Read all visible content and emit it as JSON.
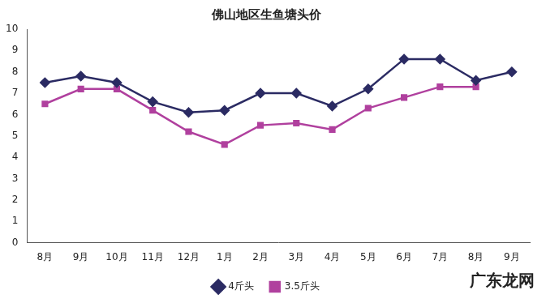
{
  "chart_data": {
    "type": "line",
    "title": "佛山地区生鱼塘头价",
    "categories": [
      "8月",
      "9月",
      "10月",
      "11月",
      "12月",
      "1月",
      "2月",
      "3月",
      "4月",
      "5月",
      "6月",
      "7月",
      "8月",
      "9月"
    ],
    "series": [
      {
        "name": "4斤头",
        "color": "#2b2b63",
        "marker": "diamond",
        "values": [
          7.5,
          7.8,
          7.5,
          6.6,
          6.1,
          6.2,
          7.0,
          7.0,
          6.4,
          7.2,
          8.6,
          8.6,
          7.6,
          8.0
        ]
      },
      {
        "name": "3.5斤头",
        "color": "#b0409e",
        "marker": "square",
        "values": [
          6.5,
          7.2,
          7.2,
          6.2,
          5.2,
          4.6,
          5.5,
          5.6,
          5.3,
          6.3,
          6.8,
          7.3,
          7.3,
          null
        ]
      }
    ],
    "ylim": [
      0,
      10
    ],
    "yticks": [
      0,
      1,
      2,
      3,
      4,
      5,
      6,
      7,
      8,
      9,
      10
    ],
    "grid": false,
    "legend": "bottom",
    "annotations": [
      "广东龙网"
    ]
  }
}
